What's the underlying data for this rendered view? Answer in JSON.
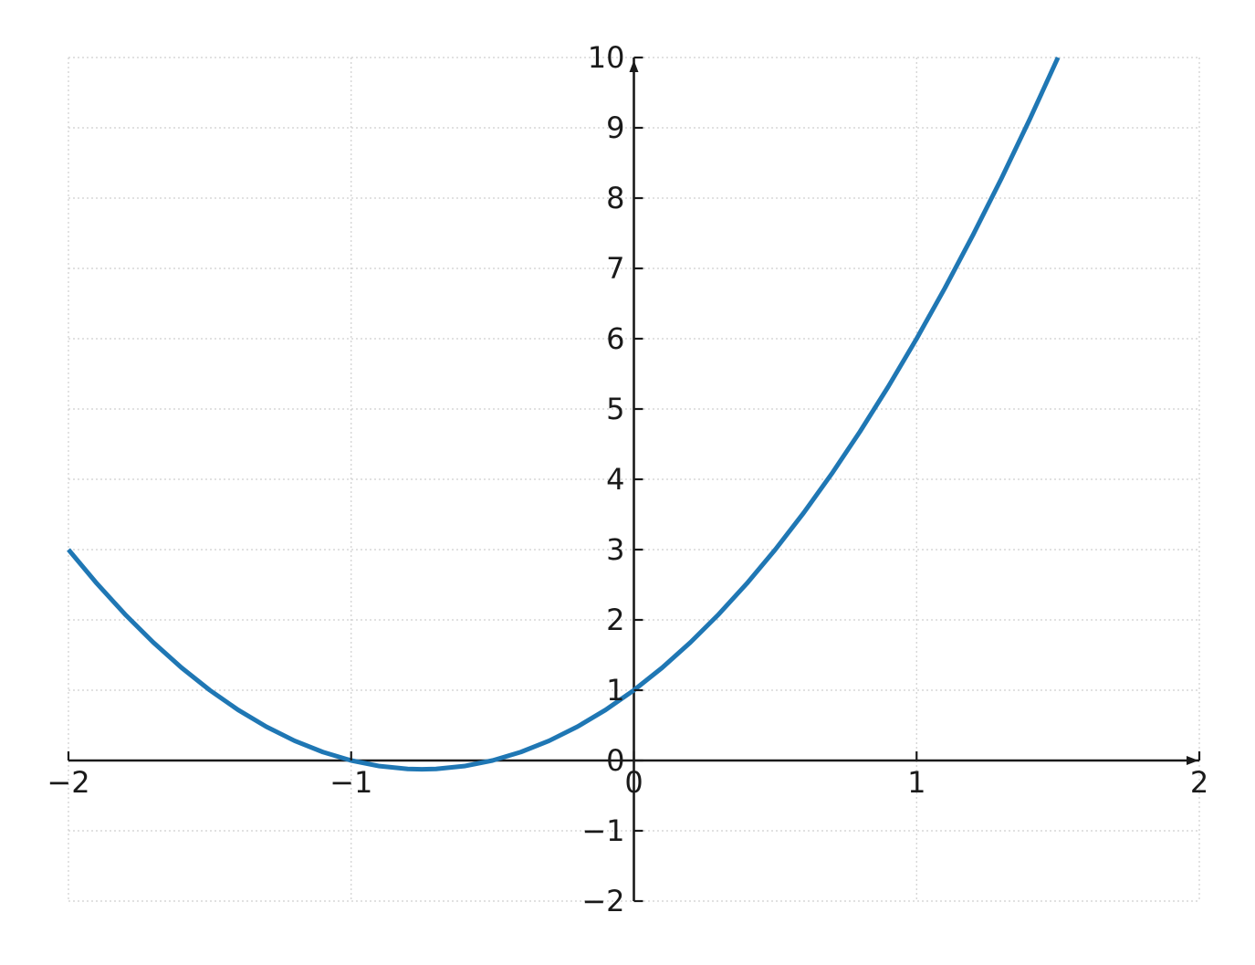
{
  "chart_data": {
    "type": "line",
    "title": "",
    "xlabel": "",
    "ylabel": "",
    "xlim": [
      -2,
      2
    ],
    "ylim": [
      -2,
      10
    ],
    "x_ticks": [
      -2,
      -1,
      0,
      1,
      2
    ],
    "x_tick_labels": [
      "−2",
      "−1",
      "0",
      "1",
      "2"
    ],
    "y_ticks": [
      -2,
      -1,
      0,
      1,
      2,
      3,
      4,
      5,
      6,
      7,
      8,
      9,
      10
    ],
    "y_tick_labels": [
      "−2",
      "−1",
      "0",
      "1",
      "2",
      "3",
      "4",
      "5",
      "6",
      "7",
      "8",
      "9",
      "10"
    ],
    "grid": true,
    "axes_style": "centered-spines-with-arrows",
    "series": [
      {
        "color": "#1f77b4",
        "x": [
          -2.0,
          -1.9,
          -1.8,
          -1.7,
          -1.6,
          -1.5,
          -1.4,
          -1.3,
          -1.2,
          -1.1,
          -1.0,
          -0.9,
          -0.8,
          -0.75,
          -0.7,
          -0.6,
          -0.5,
          -0.4,
          -0.3,
          -0.2,
          -0.1,
          0.0,
          0.1,
          0.2,
          0.3,
          0.4,
          0.5,
          0.6,
          0.7,
          0.8,
          0.9,
          1.0,
          1.1,
          1.2,
          1.3,
          1.4,
          1.5
        ],
        "y": [
          3.0,
          2.52,
          2.08,
          1.68,
          1.32,
          1.0,
          0.72,
          0.48,
          0.28,
          0.12,
          0.0,
          -0.08,
          -0.12,
          -0.125,
          -0.12,
          -0.08,
          0.0,
          0.12,
          0.28,
          0.48,
          0.72,
          1.0,
          1.32,
          1.68,
          2.08,
          2.52,
          3.0,
          3.52,
          4.08,
          4.68,
          5.32,
          6.0,
          6.72,
          7.48,
          8.28,
          9.12,
          10.0
        ]
      }
    ]
  }
}
